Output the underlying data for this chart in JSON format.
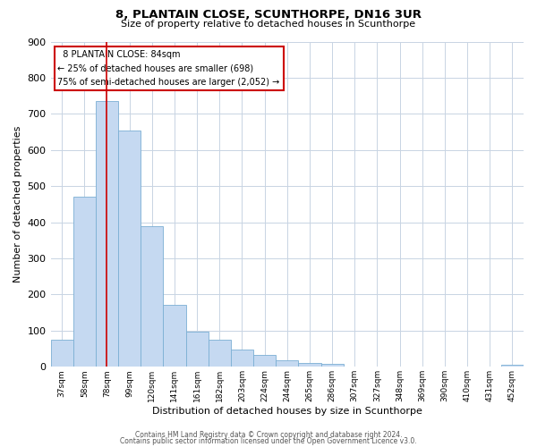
{
  "title": "8, PLANTAIN CLOSE, SCUNTHORPE, DN16 3UR",
  "subtitle": "Size of property relative to detached houses in Scunthorpe",
  "xlabel": "Distribution of detached houses by size in Scunthorpe",
  "ylabel": "Number of detached properties",
  "bar_labels": [
    "37sqm",
    "58sqm",
    "78sqm",
    "99sqm",
    "120sqm",
    "141sqm",
    "161sqm",
    "182sqm",
    "203sqm",
    "224sqm",
    "244sqm",
    "265sqm",
    "286sqm",
    "307sqm",
    "327sqm",
    "348sqm",
    "369sqm",
    "390sqm",
    "410sqm",
    "431sqm",
    "452sqm"
  ],
  "bar_values": [
    75,
    470,
    735,
    655,
    390,
    172,
    98,
    75,
    47,
    33,
    18,
    10,
    7,
    0,
    0,
    0,
    0,
    0,
    0,
    0,
    5
  ],
  "bar_color": "#c5d9f1",
  "bar_edge_color": "#7bafd4",
  "vline_x": 2,
  "vline_color": "#cc0000",
  "ylim": [
    0,
    900
  ],
  "yticks": [
    0,
    100,
    200,
    300,
    400,
    500,
    600,
    700,
    800,
    900
  ],
  "annotation_title": "8 PLANTAIN CLOSE: 84sqm",
  "annotation_line1": "← 25% of detached houses are smaller (698)",
  "annotation_line2": "75% of semi-detached houses are larger (2,052) →",
  "annotation_box_color": "#ffffff",
  "annotation_box_edge": "#cc0000",
  "footer1": "Contains HM Land Registry data © Crown copyright and database right 2024.",
  "footer2": "Contains public sector information licensed under the Open Government Licence v3.0.",
  "background_color": "#ffffff",
  "grid_color": "#c8d4e3"
}
